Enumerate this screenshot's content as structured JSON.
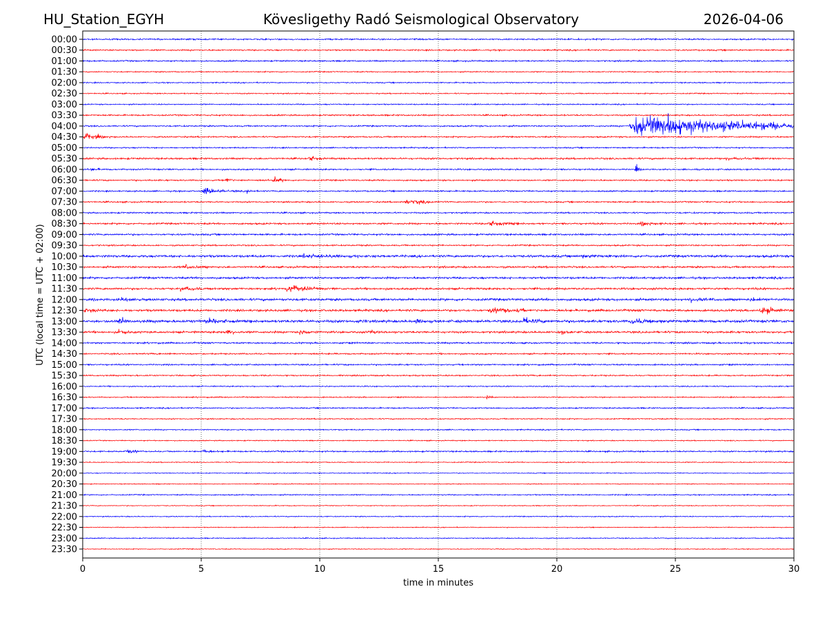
{
  "header": {
    "station": "HU_Station_EGYH",
    "title": "Kövesligethy Radó Seismological Observatory",
    "date": "2026-04-06"
  },
  "chart_data": {
    "type": "line",
    "subtype": "helicorder",
    "xlabel": "time in minutes",
    "ylabel": "UTC (local time = UTC + 02:00)",
    "xlim": [
      0,
      30
    ],
    "xticks": [
      "0",
      "5",
      "10",
      "15",
      "20",
      "25",
      "30"
    ],
    "grid": "vertical dotted at 5,10,15,20,25",
    "colors": [
      "#0000ff",
      "#ff0000"
    ],
    "rows": [
      "00:00",
      "00:30",
      "01:00",
      "01:30",
      "02:00",
      "02:30",
      "03:00",
      "03:30",
      "04:00",
      "04:30",
      "05:00",
      "05:30",
      "06:00",
      "06:30",
      "07:00",
      "07:30",
      "08:00",
      "08:30",
      "09:00",
      "09:30",
      "10:00",
      "10:30",
      "11:00",
      "11:30",
      "12:00",
      "12:30",
      "13:00",
      "13:30",
      "14:00",
      "14:30",
      "15:00",
      "15:30",
      "16:00",
      "16:30",
      "17:00",
      "17:30",
      "18:00",
      "18:30",
      "19:00",
      "19:30",
      "20:00",
      "20:30",
      "21:00",
      "21:30",
      "22:00",
      "22:30",
      "23:00",
      "23:30"
    ],
    "noise_level": [
      1,
      1,
      1,
      0.8,
      0.8,
      0.8,
      0.8,
      1,
      1,
      1,
      0.9,
      1.2,
      1,
      1,
      1,
      1,
      1,
      1.2,
      1.2,
      1,
      1.6,
      1.3,
      1.4,
      1.4,
      1.6,
      1.5,
      1.8,
      1.4,
      1.1,
      1,
      1,
      0.9,
      0.8,
      0.8,
      0.9,
      0.8,
      0.8,
      0.7,
      1,
      0.7,
      0.6,
      0.6,
      0.8,
      0.6,
      0.7,
      0.6,
      0.7,
      0.6
    ],
    "events": [
      {
        "row": "04:00",
        "start": 23,
        "end": 30,
        "amplitude": 16
      },
      {
        "row": "04:30",
        "start": 0,
        "end": 1.5,
        "amplitude": 4
      },
      {
        "row": "05:30",
        "start": 9.5,
        "end": 10.2,
        "amplitude": 4
      },
      {
        "row": "05:30",
        "start": 27,
        "end": 30,
        "amplitude": 2
      },
      {
        "row": "06:00",
        "start": 0.3,
        "end": 1,
        "amplitude": 3
      },
      {
        "row": "06:00",
        "start": 23.3,
        "end": 23.6,
        "amplitude": 5
      },
      {
        "row": "06:30",
        "start": 6,
        "end": 6.6,
        "amplitude": 4
      },
      {
        "row": "06:30",
        "start": 8,
        "end": 8.6,
        "amplitude": 5
      },
      {
        "row": "07:00",
        "start": 5,
        "end": 6.5,
        "amplitude": 5
      },
      {
        "row": "07:00",
        "start": 6.9,
        "end": 7.3,
        "amplitude": 4
      },
      {
        "row": "07:30",
        "start": 13.5,
        "end": 15.5,
        "amplitude": 4
      },
      {
        "row": "08:30",
        "start": 17,
        "end": 19.6,
        "amplitude": 3.5
      },
      {
        "row": "08:30",
        "start": 23.5,
        "end": 24.5,
        "amplitude": 4
      },
      {
        "row": "10:00",
        "start": 9,
        "end": 14,
        "amplitude": 3
      },
      {
        "row": "10:00",
        "start": 21,
        "end": 23,
        "amplitude": 3
      },
      {
        "row": "10:30",
        "start": 4.2,
        "end": 5.5,
        "amplitude": 3.5
      },
      {
        "row": "11:30",
        "start": 4,
        "end": 5.5,
        "amplitude": 4
      },
      {
        "row": "11:30",
        "start": 8.5,
        "end": 10.5,
        "amplitude": 5
      },
      {
        "row": "12:00",
        "start": 1.5,
        "end": 3,
        "amplitude": 3
      },
      {
        "row": "12:00",
        "start": 25.5,
        "end": 27.5,
        "amplitude": 3.5
      },
      {
        "row": "12:00",
        "start": 28,
        "end": 30,
        "amplitude": 3
      },
      {
        "row": "12:30",
        "start": 0,
        "end": 1.5,
        "amplitude": 3.5
      },
      {
        "row": "12:30",
        "start": 17,
        "end": 21,
        "amplitude": 3.5
      },
      {
        "row": "12:30",
        "start": 28.5,
        "end": 30,
        "amplitude": 5
      },
      {
        "row": "13:00",
        "start": 1.5,
        "end": 2.2,
        "amplitude": 5
      },
      {
        "row": "13:00",
        "start": 5,
        "end": 7.5,
        "amplitude": 4
      },
      {
        "row": "13:00",
        "start": 11.5,
        "end": 12.2,
        "amplitude": 4
      },
      {
        "row": "13:00",
        "start": 14,
        "end": 15,
        "amplitude": 4
      },
      {
        "row": "13:00",
        "start": 18.5,
        "end": 20,
        "amplitude": 5
      },
      {
        "row": "13:00",
        "start": 23,
        "end": 26,
        "amplitude": 4
      },
      {
        "row": "13:30",
        "start": 1.5,
        "end": 2.2,
        "amplitude": 4
      },
      {
        "row": "13:30",
        "start": 6,
        "end": 7,
        "amplitude": 3.5
      },
      {
        "row": "13:30",
        "start": 9,
        "end": 10.5,
        "amplitude": 4
      },
      {
        "row": "13:30",
        "start": 12,
        "end": 13.5,
        "amplitude": 3
      },
      {
        "row": "13:30",
        "start": 20,
        "end": 21,
        "amplitude": 3.5
      },
      {
        "row": "16:30",
        "start": 17,
        "end": 17.5,
        "amplitude": 3
      },
      {
        "row": "19:00",
        "start": 1.8,
        "end": 2.6,
        "amplitude": 3.5
      },
      {
        "row": "19:00",
        "start": 5,
        "end": 6.2,
        "amplitude": 2.5
      }
    ]
  }
}
